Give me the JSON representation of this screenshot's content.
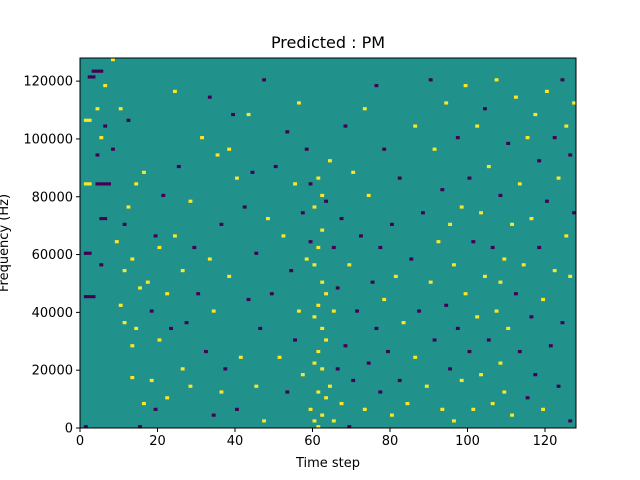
{
  "chart_data": {
    "type": "heatmap",
    "title": "Predicted : PM",
    "xlabel": "Time step",
    "ylabel": "Frequency (Hz)",
    "xlim": [
      0,
      128
    ],
    "ylim": [
      0,
      128000
    ],
    "x_ticks": [
      0,
      20,
      40,
      60,
      80,
      100,
      120
    ],
    "y_ticks": [
      0,
      20000,
      40000,
      60000,
      80000,
      100000,
      120000
    ],
    "y_tick_labels": [
      "0",
      "20000",
      "40000",
      "60000",
      "80000",
      "100000",
      "120000"
    ],
    "freq_bins": 128,
    "value_levels": [
      -1,
      0,
      1
    ],
    "colormap": {
      "-1": "#440154",
      "0": "#21918c",
      "1": "#fde725"
    },
    "background_value": 0,
    "cells": [
      [
        1,
        2,
        0,
        -1
      ],
      [
        1,
        4,
        45,
        -1
      ],
      [
        1,
        3,
        60,
        -1
      ],
      [
        1,
        3,
        84,
        1
      ],
      [
        1,
        3,
        106,
        1
      ],
      [
        2,
        4,
        121,
        -1
      ],
      [
        3,
        6,
        123,
        -1
      ],
      [
        4,
        5,
        110,
        1
      ],
      [
        4,
        5,
        94,
        -1
      ],
      [
        4,
        8,
        84,
        -1
      ],
      [
        5,
        6,
        100,
        1
      ],
      [
        5,
        7,
        72,
        -1
      ],
      [
        5,
        6,
        56,
        -1
      ],
      [
        6,
        7,
        118,
        1
      ],
      [
        6,
        7,
        104,
        -1
      ],
      [
        8,
        9,
        127,
        1
      ],
      [
        8,
        9,
        96,
        -1
      ],
      [
        9,
        10,
        64,
        1
      ],
      [
        10,
        11,
        42,
        1
      ],
      [
        10,
        11,
        110,
        1
      ],
      [
        11,
        12,
        36,
        1
      ],
      [
        11,
        12,
        54,
        1
      ],
      [
        11,
        12,
        70,
        -1
      ],
      [
        12,
        13,
        76,
        1
      ],
      [
        12,
        13,
        106,
        -1
      ],
      [
        13,
        14,
        17,
        1
      ],
      [
        13,
        14,
        28,
        1
      ],
      [
        13,
        14,
        58,
        1
      ],
      [
        14,
        15,
        34,
        1
      ],
      [
        14,
        15,
        84,
        1
      ],
      [
        15,
        16,
        48,
        1
      ],
      [
        15,
        16,
        0,
        -1
      ],
      [
        16,
        17,
        8,
        1
      ],
      [
        16,
        17,
        88,
        1
      ],
      [
        17,
        18,
        50,
        1
      ],
      [
        18,
        19,
        16,
        1
      ],
      [
        18,
        19,
        40,
        -1
      ],
      [
        19,
        20,
        6,
        -1
      ],
      [
        19,
        20,
        66,
        -1
      ],
      [
        20,
        21,
        30,
        1
      ],
      [
        20,
        21,
        62,
        1
      ],
      [
        21,
        22,
        80,
        -1
      ],
      [
        22,
        23,
        10,
        1
      ],
      [
        22,
        23,
        46,
        1
      ],
      [
        23,
        24,
        34,
        -1
      ],
      [
        24,
        25,
        66,
        1
      ],
      [
        24,
        25,
        116,
        1
      ],
      [
        25,
        26,
        90,
        -1
      ],
      [
        26,
        27,
        20,
        1
      ],
      [
        26,
        27,
        54,
        1
      ],
      [
        27,
        28,
        36,
        -1
      ],
      [
        28,
        29,
        14,
        1
      ],
      [
        28,
        29,
        78,
        1
      ],
      [
        29,
        30,
        62,
        -1
      ],
      [
        30,
        31,
        46,
        -1
      ],
      [
        31,
        32,
        100,
        1
      ],
      [
        32,
        33,
        26,
        -1
      ],
      [
        33,
        34,
        58,
        1
      ],
      [
        33,
        34,
        114,
        -1
      ],
      [
        34,
        35,
        4,
        -1
      ],
      [
        34,
        35,
        40,
        1
      ],
      [
        35,
        36,
        94,
        1
      ],
      [
        36,
        37,
        70,
        -1
      ],
      [
        36,
        37,
        12,
        1
      ],
      [
        37,
        38,
        20,
        -1
      ],
      [
        38,
        39,
        52,
        1
      ],
      [
        38,
        39,
        96,
        1
      ],
      [
        39,
        40,
        108,
        -1
      ],
      [
        40,
        41,
        6,
        -1
      ],
      [
        40,
        41,
        86,
        1
      ],
      [
        41,
        42,
        24,
        1
      ],
      [
        42,
        43,
        76,
        -1
      ],
      [
        43,
        44,
        44,
        -1
      ],
      [
        43,
        44,
        108,
        1
      ],
      [
        44,
        45,
        88,
        -1
      ],
      [
        45,
        46,
        14,
        1
      ],
      [
        45,
        46,
        60,
        -1
      ],
      [
        46,
        47,
        34,
        -1
      ],
      [
        47,
        48,
        2,
        1
      ],
      [
        47,
        48,
        120,
        -1
      ],
      [
        48,
        49,
        72,
        1
      ],
      [
        49,
        50,
        46,
        -1
      ],
      [
        50,
        51,
        90,
        -1
      ],
      [
        51,
        52,
        24,
        1
      ],
      [
        52,
        53,
        66,
        1
      ],
      [
        53,
        54,
        12,
        -1
      ],
      [
        53,
        54,
        102,
        -1
      ],
      [
        54,
        55,
        54,
        -1
      ],
      [
        55,
        56,
        30,
        -1
      ],
      [
        55,
        56,
        84,
        1
      ],
      [
        56,
        57,
        40,
        1
      ],
      [
        56,
        57,
        112,
        1
      ],
      [
        57,
        58,
        18,
        1
      ],
      [
        57,
        58,
        74,
        -1
      ],
      [
        58,
        59,
        58,
        1
      ],
      [
        58,
        59,
        96,
        -1
      ],
      [
        59,
        60,
        6,
        1
      ],
      [
        59,
        60,
        64,
        -1
      ],
      [
        59,
        60,
        84,
        -1
      ],
      [
        60,
        61,
        2,
        1
      ],
      [
        60,
        61,
        22,
        1
      ],
      [
        60,
        61,
        38,
        1
      ],
      [
        60,
        61,
        56,
        1
      ],
      [
        60,
        61,
        76,
        1
      ],
      [
        61,
        62,
        0,
        1
      ],
      [
        61,
        62,
        12,
        1
      ],
      [
        61,
        62,
        26,
        1
      ],
      [
        61,
        62,
        42,
        1
      ],
      [
        61,
        62,
        62,
        1
      ],
      [
        61,
        62,
        86,
        1
      ],
      [
        62,
        63,
        4,
        1
      ],
      [
        62,
        63,
        20,
        1
      ],
      [
        62,
        63,
        34,
        1
      ],
      [
        62,
        63,
        50,
        1
      ],
      [
        62,
        63,
        68,
        1
      ],
      [
        62,
        63,
        80,
        1
      ],
      [
        63,
        64,
        10,
        1
      ],
      [
        63,
        64,
        30,
        1
      ],
      [
        63,
        64,
        46,
        1
      ],
      [
        63,
        64,
        78,
        -1
      ],
      [
        64,
        65,
        14,
        1
      ],
      [
        64,
        65,
        92,
        1
      ],
      [
        65,
        66,
        2,
        1
      ],
      [
        65,
        66,
        40,
        1
      ],
      [
        65,
        66,
        62,
        -1
      ],
      [
        66,
        67,
        20,
        -1
      ],
      [
        66,
        67,
        48,
        -1
      ],
      [
        67,
        68,
        8,
        1
      ],
      [
        67,
        68,
        72,
        -1
      ],
      [
        68,
        69,
        28,
        -1
      ],
      [
        68,
        69,
        104,
        -1
      ],
      [
        69,
        70,
        0,
        -1
      ],
      [
        69,
        70,
        56,
        1
      ],
      [
        70,
        71,
        16,
        -1
      ],
      [
        70,
        71,
        88,
        1
      ],
      [
        71,
        72,
        40,
        -1
      ],
      [
        72,
        73,
        66,
        -1
      ],
      [
        73,
        74,
        6,
        1
      ],
      [
        73,
        74,
        110,
        1
      ],
      [
        74,
        75,
        22,
        -1
      ],
      [
        74,
        75,
        80,
        1
      ],
      [
        75,
        76,
        50,
        -1
      ],
      [
        76,
        77,
        34,
        -1
      ],
      [
        76,
        77,
        118,
        -1
      ],
      [
        77,
        78,
        12,
        -1
      ],
      [
        77,
        78,
        62,
        -1
      ],
      [
        78,
        79,
        44,
        1
      ],
      [
        78,
        79,
        96,
        -1
      ],
      [
        79,
        80,
        26,
        -1
      ],
      [
        80,
        81,
        4,
        1
      ],
      [
        80,
        81,
        70,
        -1
      ],
      [
        81,
        82,
        52,
        1
      ],
      [
        82,
        83,
        16,
        -1
      ],
      [
        82,
        83,
        86,
        -1
      ],
      [
        83,
        84,
        36,
        1
      ],
      [
        84,
        85,
        8,
        1
      ],
      [
        85,
        86,
        58,
        -1
      ],
      [
        86,
        87,
        24,
        1
      ],
      [
        86,
        87,
        104,
        1
      ],
      [
        87,
        88,
        40,
        -1
      ],
      [
        88,
        89,
        74,
        -1
      ],
      [
        89,
        90,
        14,
        1
      ],
      [
        90,
        91,
        50,
        1
      ],
      [
        90,
        91,
        120,
        -1
      ],
      [
        91,
        92,
        30,
        -1
      ],
      [
        91,
        92,
        96,
        1
      ],
      [
        92,
        93,
        64,
        1
      ],
      [
        93,
        94,
        6,
        1
      ],
      [
        93,
        94,
        82,
        -1
      ],
      [
        94,
        95,
        42,
        -1
      ],
      [
        94,
        95,
        112,
        1
      ],
      [
        95,
        96,
        20,
        -1
      ],
      [
        95,
        96,
        70,
        1
      ],
      [
        96,
        97,
        2,
        1
      ],
      [
        96,
        97,
        56,
        1
      ],
      [
        97,
        98,
        34,
        -1
      ],
      [
        97,
        98,
        100,
        -1
      ],
      [
        98,
        99,
        16,
        1
      ],
      [
        98,
        99,
        76,
        1
      ],
      [
        99,
        100,
        46,
        1
      ],
      [
        99,
        100,
        118,
        1
      ],
      [
        100,
        101,
        26,
        -1
      ],
      [
        100,
        101,
        86,
        -1
      ],
      [
        101,
        102,
        64,
        -1
      ],
      [
        101,
        102,
        6,
        1
      ],
      [
        102,
        103,
        38,
        1
      ],
      [
        102,
        103,
        104,
        1
      ],
      [
        103,
        104,
        18,
        1
      ],
      [
        103,
        104,
        74,
        1
      ],
      [
        104,
        105,
        52,
        1
      ],
      [
        104,
        105,
        110,
        -1
      ],
      [
        105,
        106,
        30,
        -1
      ],
      [
        105,
        106,
        90,
        1
      ],
      [
        106,
        107,
        8,
        1
      ],
      [
        106,
        107,
        62,
        -1
      ],
      [
        107,
        108,
        40,
        1
      ],
      [
        107,
        108,
        120,
        1
      ],
      [
        108,
        109,
        22,
        1
      ],
      [
        108,
        109,
        50,
        1
      ],
      [
        108,
        109,
        80,
        -1
      ],
      [
        109,
        110,
        12,
        1
      ],
      [
        109,
        110,
        58,
        1
      ],
      [
        110,
        111,
        34,
        1
      ],
      [
        110,
        111,
        98,
        -1
      ],
      [
        111,
        112,
        4,
        1
      ],
      [
        111,
        112,
        70,
        1
      ],
      [
        112,
        113,
        46,
        -1
      ],
      [
        112,
        113,
        114,
        1
      ],
      [
        113,
        114,
        26,
        -1
      ],
      [
        113,
        114,
        84,
        1
      ],
      [
        114,
        115,
        56,
        1
      ],
      [
        115,
        116,
        10,
        -1
      ],
      [
        115,
        116,
        100,
        1
      ],
      [
        116,
        117,
        38,
        -1
      ],
      [
        116,
        117,
        72,
        1
      ],
      [
        117,
        118,
        18,
        -1
      ],
      [
        117,
        118,
        108,
        1
      ],
      [
        118,
        119,
        62,
        -1
      ],
      [
        118,
        119,
        92,
        -1
      ],
      [
        119,
        120,
        6,
        1
      ],
      [
        119,
        120,
        44,
        1
      ],
      [
        120,
        121,
        78,
        -1
      ],
      [
        120,
        121,
        116,
        1
      ],
      [
        121,
        122,
        28,
        -1
      ],
      [
        122,
        123,
        54,
        1
      ],
      [
        122,
        123,
        100,
        -1
      ],
      [
        123,
        124,
        14,
        -1
      ],
      [
        123,
        124,
        86,
        1
      ],
      [
        124,
        125,
        36,
        -1
      ],
      [
        124,
        125,
        120,
        -1
      ],
      [
        125,
        126,
        66,
        1
      ],
      [
        125,
        126,
        104,
        1
      ],
      [
        126,
        127,
        2,
        -1
      ],
      [
        126,
        127,
        52,
        1
      ],
      [
        126,
        127,
        94,
        -1
      ],
      [
        127,
        128,
        74,
        -1
      ],
      [
        127,
        128,
        112,
        1
      ]
    ]
  }
}
